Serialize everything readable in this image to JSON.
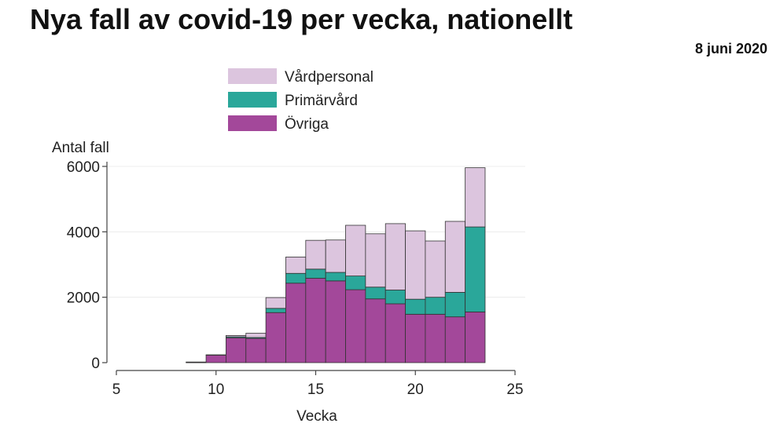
{
  "title": "Nya fall av covid-19 per vecka, nationellt",
  "date": "8 juni 2020",
  "chart_data": {
    "type": "bar",
    "stacked": true,
    "title": "Nya fall av covid-19 per vecka, nationellt",
    "xlabel": "Vecka",
    "ylabel": "Antal fall",
    "xlim": [
      5,
      25
    ],
    "ylim": [
      0,
      6000
    ],
    "x_ticks": [
      5,
      10,
      15,
      20,
      25
    ],
    "y_ticks": [
      0,
      2000,
      4000,
      6000
    ],
    "grid": true,
    "legend_position": "top",
    "x": [
      9,
      10,
      11,
      12,
      13,
      14,
      15,
      16,
      17,
      18,
      19,
      20,
      21,
      22,
      23
    ],
    "series": [
      {
        "name": "Övriga",
        "color": "#a3489a",
        "values": [
          10,
          230,
          760,
          740,
          1530,
          2430,
          2580,
          2500,
          2230,
          1950,
          1800,
          1480,
          1480,
          1400,
          1550
        ]
      },
      {
        "name": "Primärvård",
        "color": "#2aa79a",
        "values": [
          0,
          0,
          30,
          30,
          130,
          300,
          280,
          260,
          420,
          360,
          420,
          460,
          520,
          750,
          2600
        ]
      },
      {
        "name": "Vårdpersonal",
        "color": "#dcc5de",
        "values": [
          10,
          10,
          40,
          130,
          330,
          500,
          880,
          990,
          1550,
          1630,
          2030,
          2090,
          1720,
          2170,
          1810
        ]
      }
    ]
  }
}
